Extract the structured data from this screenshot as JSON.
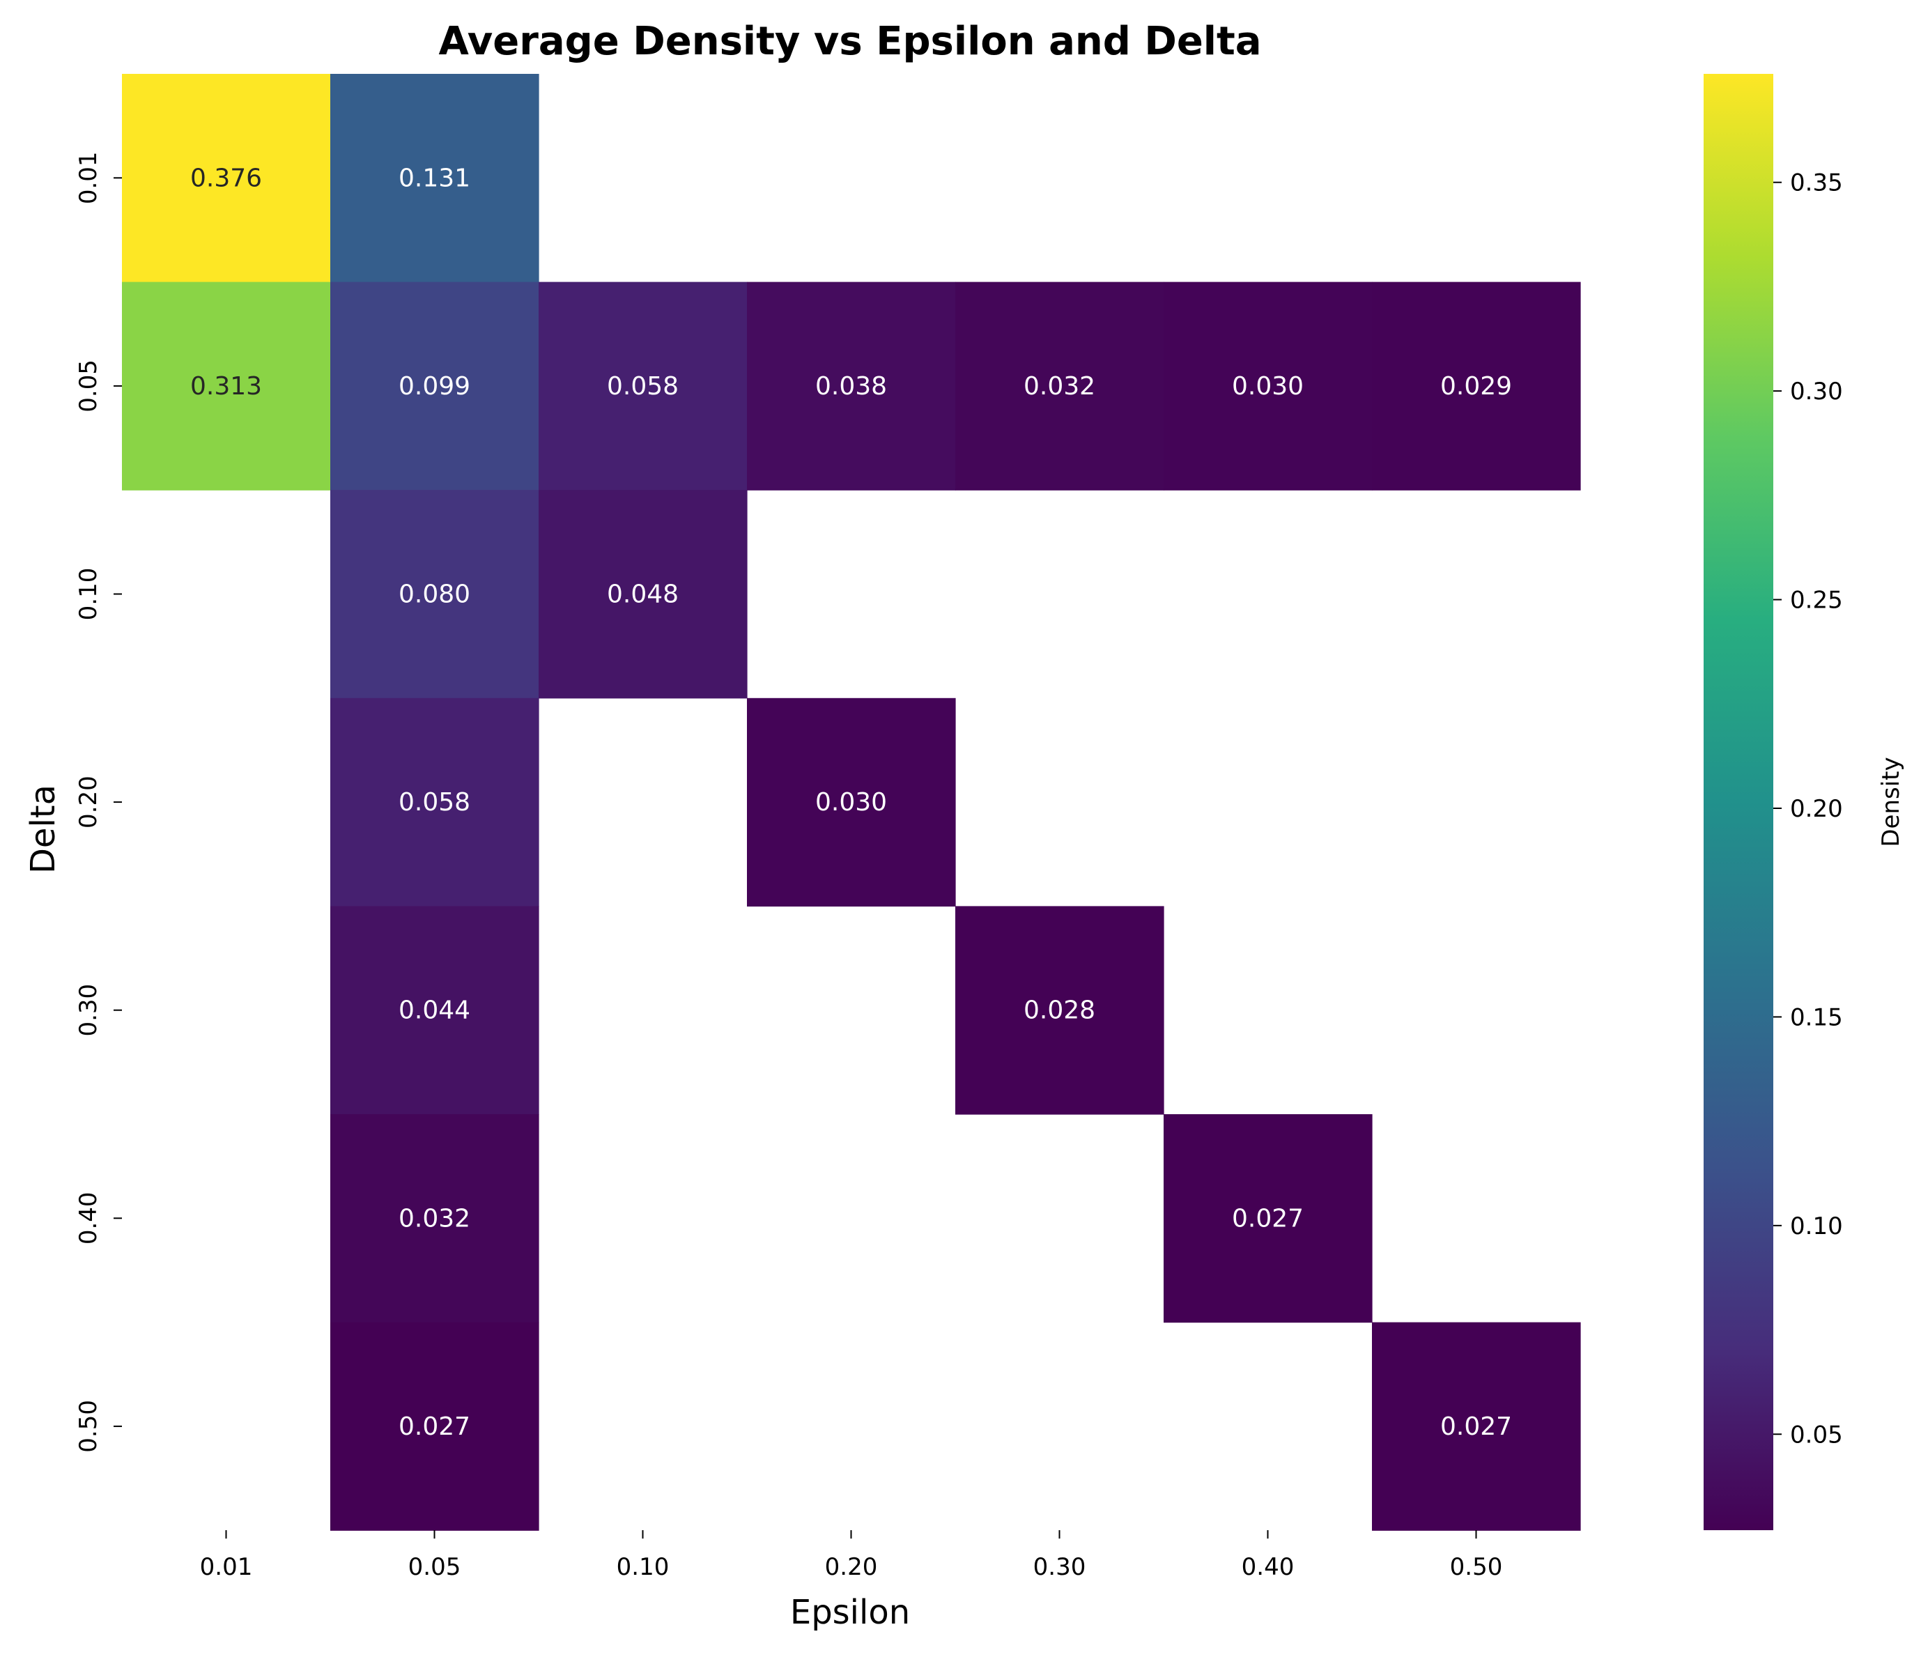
{
  "chart_data": {
    "type": "heatmap",
    "title": "Average Density vs Epsilon and Delta",
    "xlabel": "Epsilon",
    "ylabel": "Delta",
    "x_categories": [
      "0.01",
      "0.05",
      "0.10",
      "0.20",
      "0.30",
      "0.40",
      "0.50"
    ],
    "y_categories": [
      "0.01",
      "0.05",
      "0.10",
      "0.20",
      "0.30",
      "0.40",
      "0.50"
    ],
    "values": [
      [
        0.376,
        0.131,
        null,
        null,
        null,
        null,
        null
      ],
      [
        0.313,
        0.099,
        0.058,
        0.038,
        0.032,
        0.03,
        0.029
      ],
      [
        null,
        0.08,
        0.048,
        null,
        null,
        null,
        null
      ],
      [
        null,
        0.058,
        null,
        0.03,
        null,
        null,
        null
      ],
      [
        null,
        0.044,
        null,
        null,
        0.028,
        null,
        null
      ],
      [
        null,
        0.032,
        null,
        null,
        null,
        0.027,
        null
      ],
      [
        null,
        0.027,
        null,
        null,
        null,
        null,
        0.027
      ]
    ],
    "annotation_format": "3 decimals",
    "colormap": "viridis",
    "colorbar": {
      "label": "Density",
      "range": [
        0.027,
        0.376
      ],
      "ticks": [
        0.05,
        0.1,
        0.15,
        0.2,
        0.25,
        0.3,
        0.35
      ],
      "tick_labels": [
        "0.05",
        "0.10",
        "0.15",
        "0.20",
        "0.25",
        "0.30",
        "0.35"
      ]
    },
    "grid": false,
    "legend": "none"
  }
}
